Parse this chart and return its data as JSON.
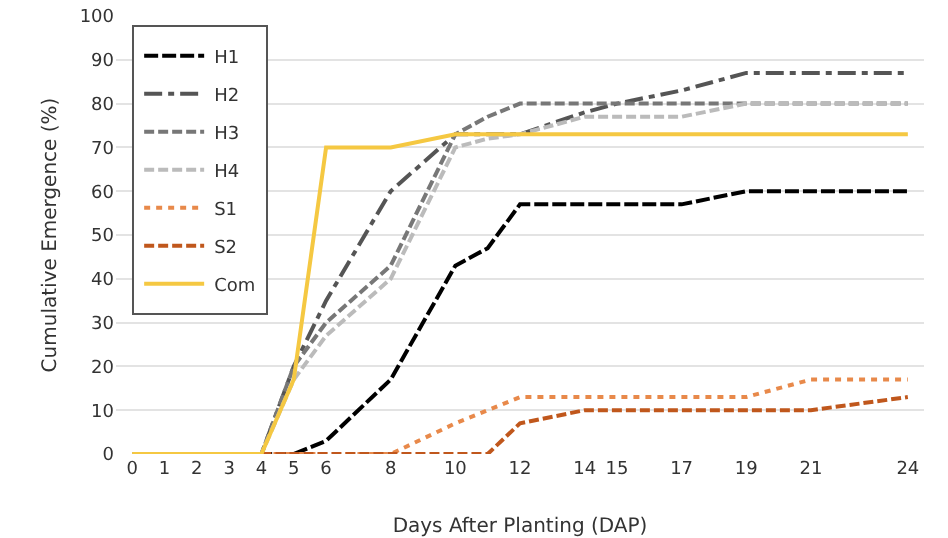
{
  "chart_data": {
    "type": "line",
    "xlabel": "Days After Planting (DAP)",
    "ylabel": "Cumulative Emergence (%)",
    "xlim": [
      -0.5,
      24.5
    ],
    "xticks": [
      0,
      1,
      2,
      3,
      4,
      5,
      6,
      8,
      10,
      12,
      14,
      15,
      17,
      19,
      21,
      24
    ],
    "ylim": [
      0,
      100
    ],
    "yticks": [
      0,
      10,
      20,
      30,
      40,
      50,
      60,
      70,
      80,
      90,
      100
    ],
    "grid": "y",
    "legend": "top left",
    "marker": "none",
    "x": [
      0,
      1,
      2,
      3,
      4,
      5,
      6,
      8,
      10,
      11,
      12,
      14,
      15,
      17,
      19,
      21,
      24
    ],
    "series": [
      {
        "name": "H1",
        "color": "#000000",
        "line_style": "longdash",
        "values": [
          0,
          0,
          0,
          0,
          0,
          0,
          3,
          17,
          43,
          47,
          57,
          57,
          57,
          57,
          60,
          60,
          60
        ]
      },
      {
        "name": "H2",
        "color": "#555555",
        "line_style": "dashdot",
        "values": [
          0,
          0,
          0,
          0,
          0,
          20,
          35,
          60,
          73,
          73,
          73,
          78,
          80,
          83,
          87,
          87,
          87
        ]
      },
      {
        "name": "H3",
        "color": "#777777",
        "line_style": "dashed",
        "values": [
          0,
          0,
          0,
          0,
          0,
          20,
          30,
          43,
          73,
          77,
          80,
          80,
          80,
          80,
          80,
          80,
          80
        ]
      },
      {
        "name": "H4",
        "color": "#bbbbbb",
        "line_style": "dashed",
        "values": [
          0,
          0,
          0,
          0,
          0,
          17,
          27,
          40,
          70,
          72,
          73,
          77,
          77,
          77,
          80,
          80,
          80
        ]
      },
      {
        "name": "S1",
        "color": "#e8894a",
        "line_style": "dotted",
        "values": [
          null,
          null,
          null,
          null,
          0,
          0,
          0,
          0,
          7,
          10,
          13,
          13,
          13,
          13,
          13,
          17,
          17
        ]
      },
      {
        "name": "S2",
        "color": "#c0571c",
        "line_style": "dashed",
        "values": [
          null,
          null,
          null,
          null,
          0,
          0,
          0,
          0,
          0,
          0,
          7,
          10,
          10,
          10,
          10,
          10,
          13
        ]
      },
      {
        "name": "Com",
        "color": "#f5c842",
        "line_style": "solid",
        "values": [
          0,
          0,
          0,
          0,
          0,
          17,
          70,
          70,
          73,
          73,
          73,
          73,
          73,
          73,
          73,
          73,
          73
        ]
      }
    ]
  }
}
